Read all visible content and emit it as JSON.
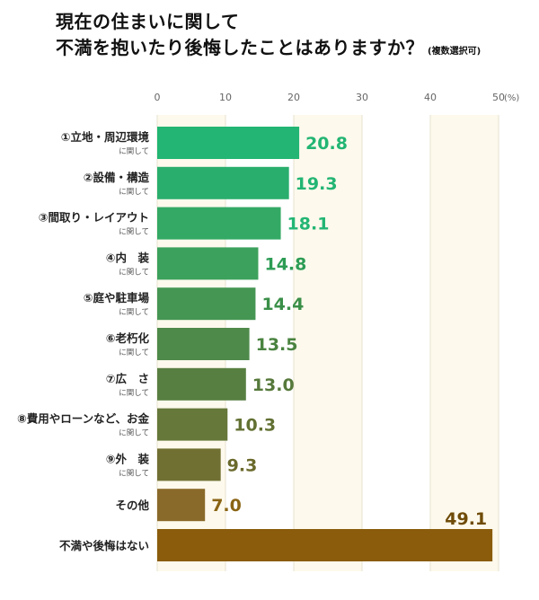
{
  "title": {
    "line1": "現在の住まいに関して",
    "line2": "不満を抱いたり後悔したことはありますか？",
    "note": "(複数選択可)"
  },
  "colors": {
    "band_a": "#fdf9ec",
    "band_b": "#ffffff",
    "grid": "#e7e2cf",
    "label_high": "#22b573",
    "label_mid": "#6b7f2c",
    "label_low": "#8a6414",
    "label_last": "#6f4c08"
  },
  "chart_data": {
    "type": "bar",
    "orientation": "horizontal",
    "x_ticks": [
      "0",
      "10",
      "20",
      "30",
      "40",
      "50"
    ],
    "unit": "(%)",
    "xlim": [
      0,
      50
    ],
    "grid": true,
    "categories": [
      {
        "label": "①立地・周辺環境",
        "sub": "に関して",
        "value": 20.8,
        "value_label": "20.8",
        "color": "#22b573",
        "label_color": "#22b573"
      },
      {
        "label": "②設備・構造",
        "sub": "に関して",
        "value": 19.3,
        "value_label": "19.3",
        "color": "#2aae6d",
        "label_color": "#22b573"
      },
      {
        "label": "③間取り・レイアウト",
        "sub": "に関して",
        "value": 18.1,
        "value_label": "18.1",
        "color": "#33a965",
        "label_color": "#22b573"
      },
      {
        "label": "④内　装",
        "sub": "に関して",
        "value": 14.8,
        "value_label": "14.8",
        "color": "#3ca15c",
        "label_color": "#2d9c55"
      },
      {
        "label": "⑤庭や駐車場",
        "sub": "に関して",
        "value": 14.4,
        "value_label": "14.4",
        "color": "#459653",
        "label_color": "#3a8f48"
      },
      {
        "label": "⑥老朽化",
        "sub": "に関して",
        "value": 13.5,
        "value_label": "13.5",
        "color": "#4e8a4a",
        "label_color": "#4a8340"
      },
      {
        "label": "⑦広　さ",
        "sub": "に関して",
        "value": 13.0,
        "value_label": "13.0",
        "color": "#587f42",
        "label_color": "#56793b"
      },
      {
        "label": "⑧費用やローンなど、お金",
        "sub": "に関して",
        "value": 10.3,
        "value_label": "10.3",
        "color": "#66783a",
        "label_color": "#627133"
      },
      {
        "label": "⑨外　装",
        "sub": "に関して",
        "value": 9.3,
        "value_label": "9.3",
        "color": "#717033",
        "label_color": "#6b6a2c"
      },
      {
        "label": "その他",
        "sub": "",
        "value": 7.0,
        "value_label": "7.0",
        "color": "#8a6a2a",
        "label_color": "#8a6414"
      },
      {
        "label": "不満や後悔はない",
        "sub": "",
        "value": 49.1,
        "value_label": "49.1",
        "color": "#8a5c0c",
        "label_color": "#6f4c08"
      }
    ]
  }
}
